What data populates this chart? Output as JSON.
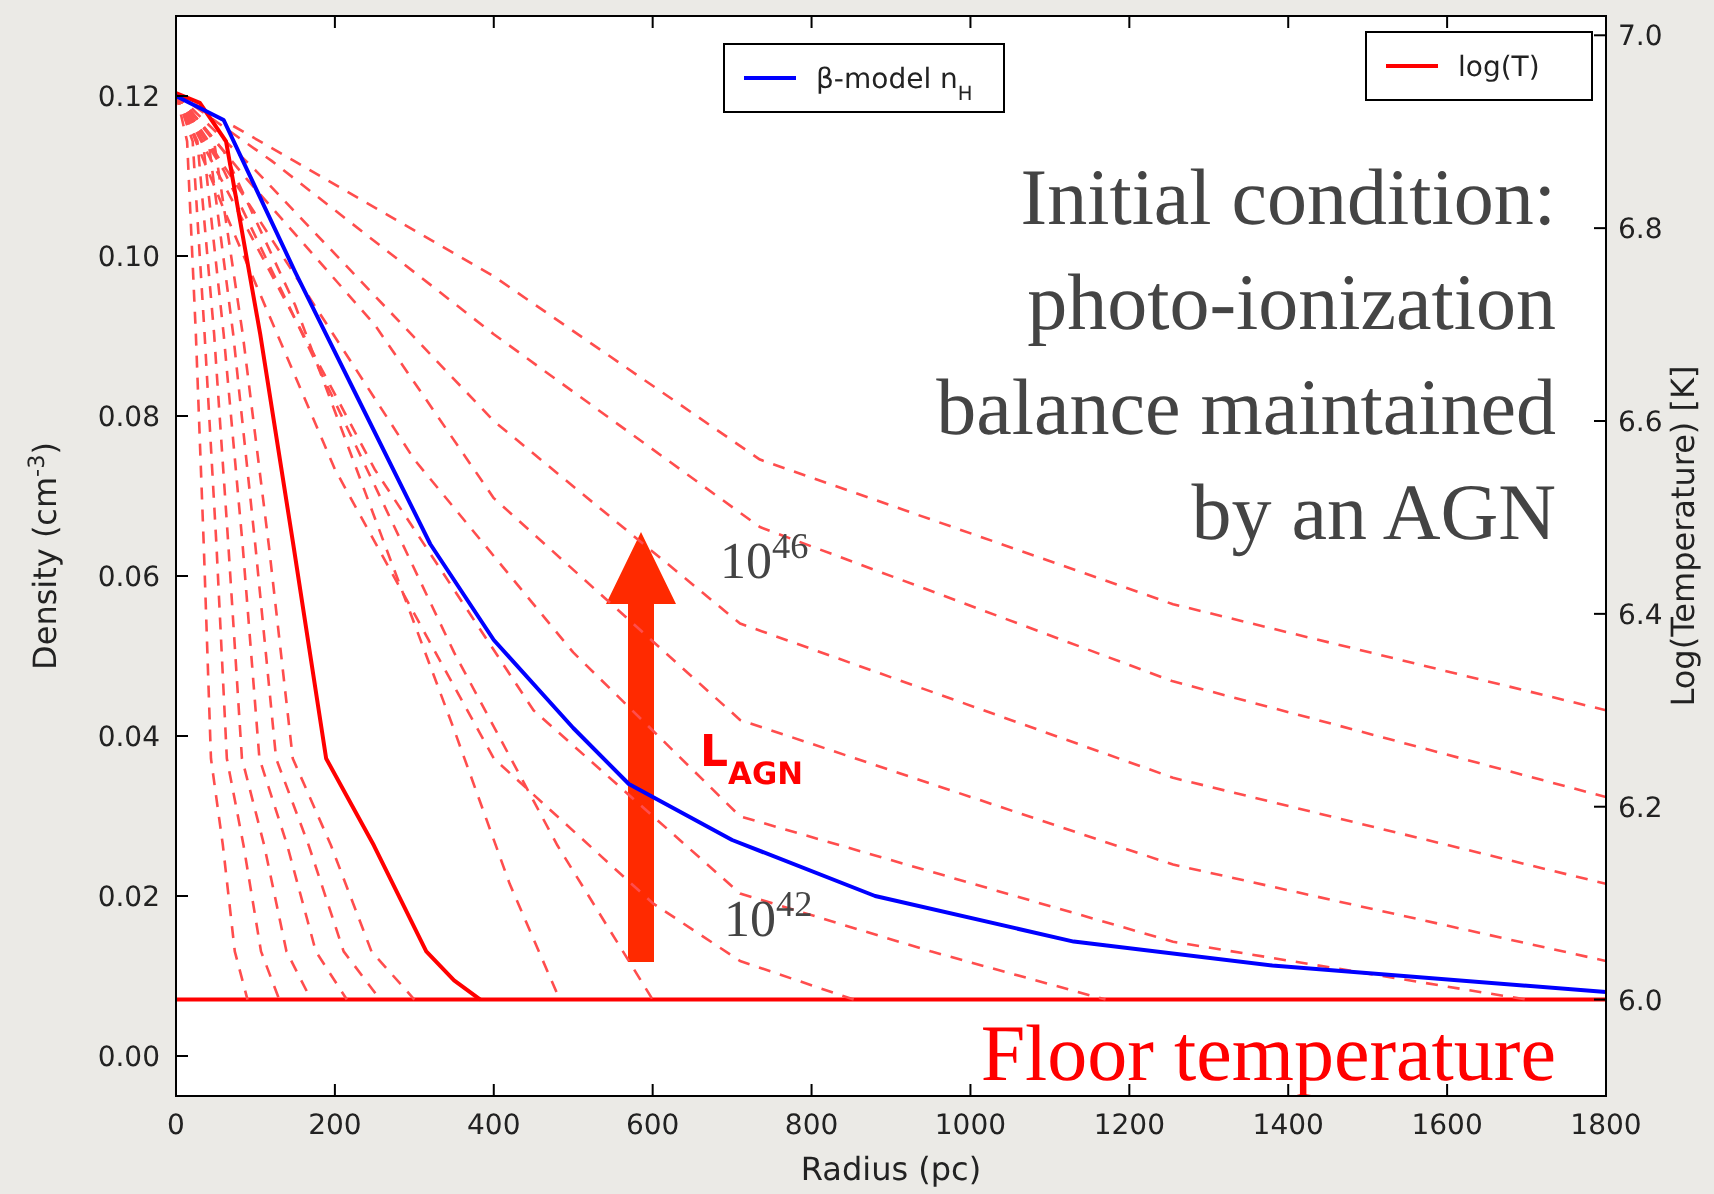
{
  "chart_data": {
    "type": "line",
    "xlabel": "Radius (pc)",
    "ylabel": "Density (cm$^{-3}$)",
    "y2label": "Log(Temperature) [K]",
    "xlim": [
      0,
      1800
    ],
    "xticks": [
      0,
      200,
      400,
      600,
      800,
      1000,
      1200,
      1400,
      1600,
      1800
    ],
    "ylim": [
      -0.005,
      0.13
    ],
    "yticks": [
      {
        "value": 0,
        "label": "0.00"
      },
      {
        "value": 0.02,
        "label": "0.02"
      },
      {
        "value": 0.04,
        "label": "0.04"
      },
      {
        "value": 0.06,
        "label": "0.06"
      },
      {
        "value": 0.08,
        "label": "0.08"
      },
      {
        "value": 0.1,
        "label": "0.10"
      },
      {
        "value": 0.12,
        "label": "0.12"
      }
    ],
    "y2lim": [
      5.9,
      7.02
    ],
    "y2ticks": [
      {
        "value": 6,
        "label": "6.0"
      },
      {
        "value": 6.2,
        "label": "6.2"
      },
      {
        "value": 6.4,
        "label": "6.4"
      },
      {
        "value": 6.6,
        "label": "6.6"
      },
      {
        "value": 6.8,
        "label": "6.8"
      },
      {
        "value": 7,
        "label": "7.0"
      }
    ],
    "legend": "top right",
    "grid": false,
    "ref_lines": [
      {
        "axis": "y2",
        "value": 6.0,
        "label": "Floor temperature",
        "color": "#ff0000"
      }
    ],
    "annotations": [
      "Initial condition:\nphoto-ionization\nbalance maintained\nby an AGN",
      {
        "text": "10$^{46}$",
        "x": 584,
        "y": 0.065
      },
      "L$_{AGN}$",
      "10$^{42}$"
    ],
    "series": [
      {
        "name": "β-model n$_{H}$",
        "color": "#0000ff",
        "x": [
          0,
          60,
          150,
          230,
          320,
          400,
          500,
          570,
          700,
          880,
          1130,
          1380,
          1800
        ],
        "values": [
          0.12,
          0.117,
          0.098,
          0.082,
          0.064,
          0.052,
          0.041,
          0.034,
          0.027,
          0.02,
          0.0143,
          0.0113,
          0.008
        ]
      },
      {
        "name": "log(T)",
        "color": "#ff0000",
        "axis": "y2",
        "x": [
          0,
          30,
          63,
          106,
          148,
          189,
          249,
          315,
          350,
          383
        ],
        "values": [
          6.94,
          6.93,
          6.89,
          6.69,
          6.47,
          6.25,
          6.16,
          6.05,
          6.02,
          6.0
        ]
      },
      {
        "color": "#ff4d4d",
        "axis": "y2",
        "line_style": "dashed",
        "x": [
          0,
          148,
          400,
          735,
          1255,
          1800
        ],
        "values": [
          6.94,
          6.87,
          6.75,
          6.56,
          6.41,
          6.3
        ]
      },
      {
        "color": "#ff4d4d",
        "axis": "y2",
        "line_style": "dashed",
        "x": [
          0,
          120,
          400,
          735,
          1255,
          1800
        ],
        "values": [
          6.94,
          6.87,
          6.69,
          6.49,
          6.33,
          6.21
        ]
      },
      {
        "color": "#ff4d4d",
        "axis": "y2",
        "line_style": "dashed",
        "x": [
          0,
          100,
          400,
          710,
          1255,
          1800
        ],
        "values": [
          6.94,
          6.86,
          6.6,
          6.39,
          6.23,
          6.12
        ]
      },
      {
        "color": "#ff4d4d",
        "axis": "y2",
        "line_style": "dashed",
        "x": [
          0,
          90,
          250,
          400,
          710,
          1255,
          1800
        ],
        "values": [
          6.94,
          6.85,
          6.7,
          6.52,
          6.29,
          6.14,
          6.04
        ]
      },
      {
        "color": "#ff4d4d",
        "axis": "y2",
        "line_style": "dashed",
        "x": [
          0,
          80,
          300,
          500,
          710,
          1255,
          1700
        ],
        "values": [
          6.94,
          6.84,
          6.56,
          6.36,
          6.19,
          6.06,
          6.0
        ]
      },
      {
        "color": "#ff4d4d",
        "axis": "y2",
        "line_style": "dashed",
        "x": [
          0,
          70,
          250,
          450,
          710,
          950,
          1170
        ],
        "values": [
          6.94,
          6.83,
          6.55,
          6.3,
          6.11,
          6.05,
          6.0
        ]
      },
      {
        "color": "#ff4d4d",
        "axis": "y2",
        "line_style": "dashed",
        "x": [
          0,
          60,
          200,
          400,
          600,
          710,
          853
        ],
        "values": [
          6.94,
          6.82,
          6.55,
          6.25,
          6.1,
          6.04,
          6.0
        ]
      },
      {
        "color": "#ff4d4d",
        "axis": "y2",
        "line_style": "dashed",
        "x": [
          0,
          60,
          200,
          350,
          480,
          600
        ],
        "values": [
          6.94,
          6.86,
          6.62,
          6.36,
          6.16,
          6.0
        ]
      },
      {
        "color": "#ff4d4d",
        "axis": "y2",
        "line_style": "dashed",
        "x": [
          0,
          60,
          150,
          250,
          350,
          420,
          483
        ],
        "values": [
          6.94,
          6.88,
          6.72,
          6.5,
          6.28,
          6.12,
          6.0
        ]
      },
      {
        "color": "#ff4d4d",
        "axis": "y2",
        "line_style": "dashed",
        "x": [
          0,
          48,
          84,
          117,
          147,
          195,
          246,
          300
        ],
        "values": [
          6.94,
          6.89,
          6.69,
          6.47,
          6.25,
          6.16,
          6.05,
          6.0
        ]
      },
      {
        "color": "#ff4d4d",
        "axis": "y2",
        "line_style": "dashed",
        "x": [
          0,
          41,
          72,
          100,
          126,
          167,
          211,
          257
        ],
        "values": [
          6.94,
          6.89,
          6.69,
          6.47,
          6.25,
          6.16,
          6.05,
          6.0
        ]
      },
      {
        "color": "#ff4d4d",
        "axis": "y2",
        "line_style": "dashed",
        "x": [
          0,
          34,
          60,
          84,
          105,
          140,
          176,
          215
        ],
        "values": [
          6.94,
          6.89,
          6.69,
          6.47,
          6.25,
          6.16,
          6.05,
          6.0
        ]
      },
      {
        "color": "#ff4d4d",
        "axis": "y2",
        "line_style": "dashed",
        "x": [
          0,
          27,
          48,
          66,
          83,
          111,
          139,
          170
        ],
        "values": [
          6.94,
          6.89,
          6.69,
          6.47,
          6.25,
          6.16,
          6.05,
          6.0
        ]
      },
      {
        "color": "#ff4d4d",
        "axis": "y2",
        "line_style": "dashed",
        "x": [
          0,
          21,
          36,
          51,
          64,
          85,
          107,
          130
        ],
        "values": [
          6.94,
          6.89,
          6.69,
          6.47,
          6.25,
          6.16,
          6.05,
          6.0
        ]
      },
      {
        "color": "#ff4d4d",
        "axis": "y2",
        "line_style": "dashed",
        "x": [
          0,
          14,
          25,
          35,
          44,
          59,
          74,
          90
        ],
        "values": [
          6.94,
          6.89,
          6.69,
          6.47,
          6.25,
          6.16,
          6.05,
          6.0
        ]
      }
    ]
  }
}
